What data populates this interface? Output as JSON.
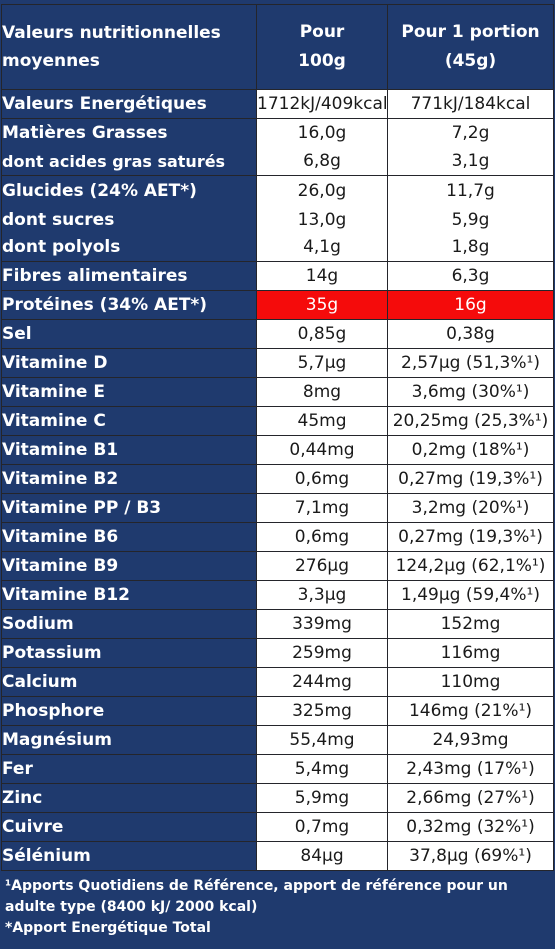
{
  "header": {
    "label_line1": "Valeurs nutritionnelles",
    "label_line2": "moyennes",
    "col1_line1": "Pour",
    "col1_line2": "100g",
    "col2_line1": "Pour 1 portion",
    "col2_line2": "(45g)"
  },
  "rows": [
    {
      "label": "Valeurs Energétiques",
      "per100": "1712kJ/409kcal",
      "portion": "771kJ/184kcal"
    },
    {
      "label": "Matières Grasses",
      "per100": "16,0g",
      "portion": "7,2g"
    },
    {
      "label": "dont acides gras saturés",
      "per100": "6,8g",
      "portion": "3,1g"
    },
    {
      "label": "Glucides (24% AET*)",
      "per100": "26,0g",
      "portion": "11,7g"
    },
    {
      "label": "dont sucres",
      "per100": "13,0g",
      "portion": "5,9g"
    },
    {
      "label": "dont polyols",
      "per100": "4,1g",
      "portion": "1,8g"
    },
    {
      "label": "Fibres alimentaires",
      "per100": "14g",
      "portion": "6,3g"
    },
    {
      "label": "Protéines (34% AET*)",
      "per100": "35g",
      "portion": "16g"
    },
    {
      "label": "Sel",
      "per100": "0,85g",
      "portion": "0,38g"
    },
    {
      "label": "Vitamine D",
      "per100": "5,7µg",
      "portion": "2,57µg (51,3%¹)"
    },
    {
      "label": "Vitamine E",
      "per100": "8mg",
      "portion": "3,6mg (30%¹)"
    },
    {
      "label": "Vitamine C",
      "per100": "45mg",
      "portion": "20,25mg (25,3%¹)"
    },
    {
      "label": "Vitamine B1",
      "per100": "0,44mg",
      "portion": "0,2mg (18%¹)"
    },
    {
      "label": "Vitamine B2",
      "per100": "0,6mg",
      "portion": "0,27mg (19,3%¹)"
    },
    {
      "label": "Vitamine PP / B3",
      "per100": "7,1mg",
      "portion": "3,2mg (20%¹)"
    },
    {
      "label": "Vitamine B6",
      "per100": "0,6mg",
      "portion": "0,27mg (19,3%¹)"
    },
    {
      "label": "Vitamine B9",
      "per100": "276µg",
      "portion": "124,2µg (62,1%¹)"
    },
    {
      "label": "Vitamine B12",
      "per100": "3,3µg",
      "portion": "1,49µg (59,4%¹)"
    },
    {
      "label": "Sodium",
      "per100": "339mg",
      "portion": "152mg"
    },
    {
      "label": "Potassium",
      "per100": "259mg",
      "portion": "116mg"
    },
    {
      "label": "Calcium",
      "per100": "244mg",
      "portion": "110mg"
    },
    {
      "label": "Phosphore",
      "per100": "325mg",
      "portion": "146mg (21%¹)"
    },
    {
      "label": "Magnésium",
      "per100": "55,4mg",
      "portion": "24,93mg"
    },
    {
      "label": "Fer",
      "per100": "5,4mg",
      "portion": "2,43mg (17%¹)"
    },
    {
      "label": "Zinc",
      "per100": "5,9mg",
      "portion": "2,66mg (27%¹)"
    },
    {
      "label": "Cuivre",
      "per100": "0,7mg",
      "portion": "0,32mg (32%¹)"
    },
    {
      "label": "Sélénium",
      "per100": "84µg",
      "portion": "37,8µg (69%¹)"
    }
  ],
  "footnotes": {
    "line1": "¹Apports Quotidiens de Référence, apport de référence pour un adulte type (8400 kJ/ 2000 kcal)",
    "line2": "*Apport Energétique Total"
  },
  "colors": {
    "header_bg": "#1f3a6e",
    "highlight": "#f50b0b"
  }
}
